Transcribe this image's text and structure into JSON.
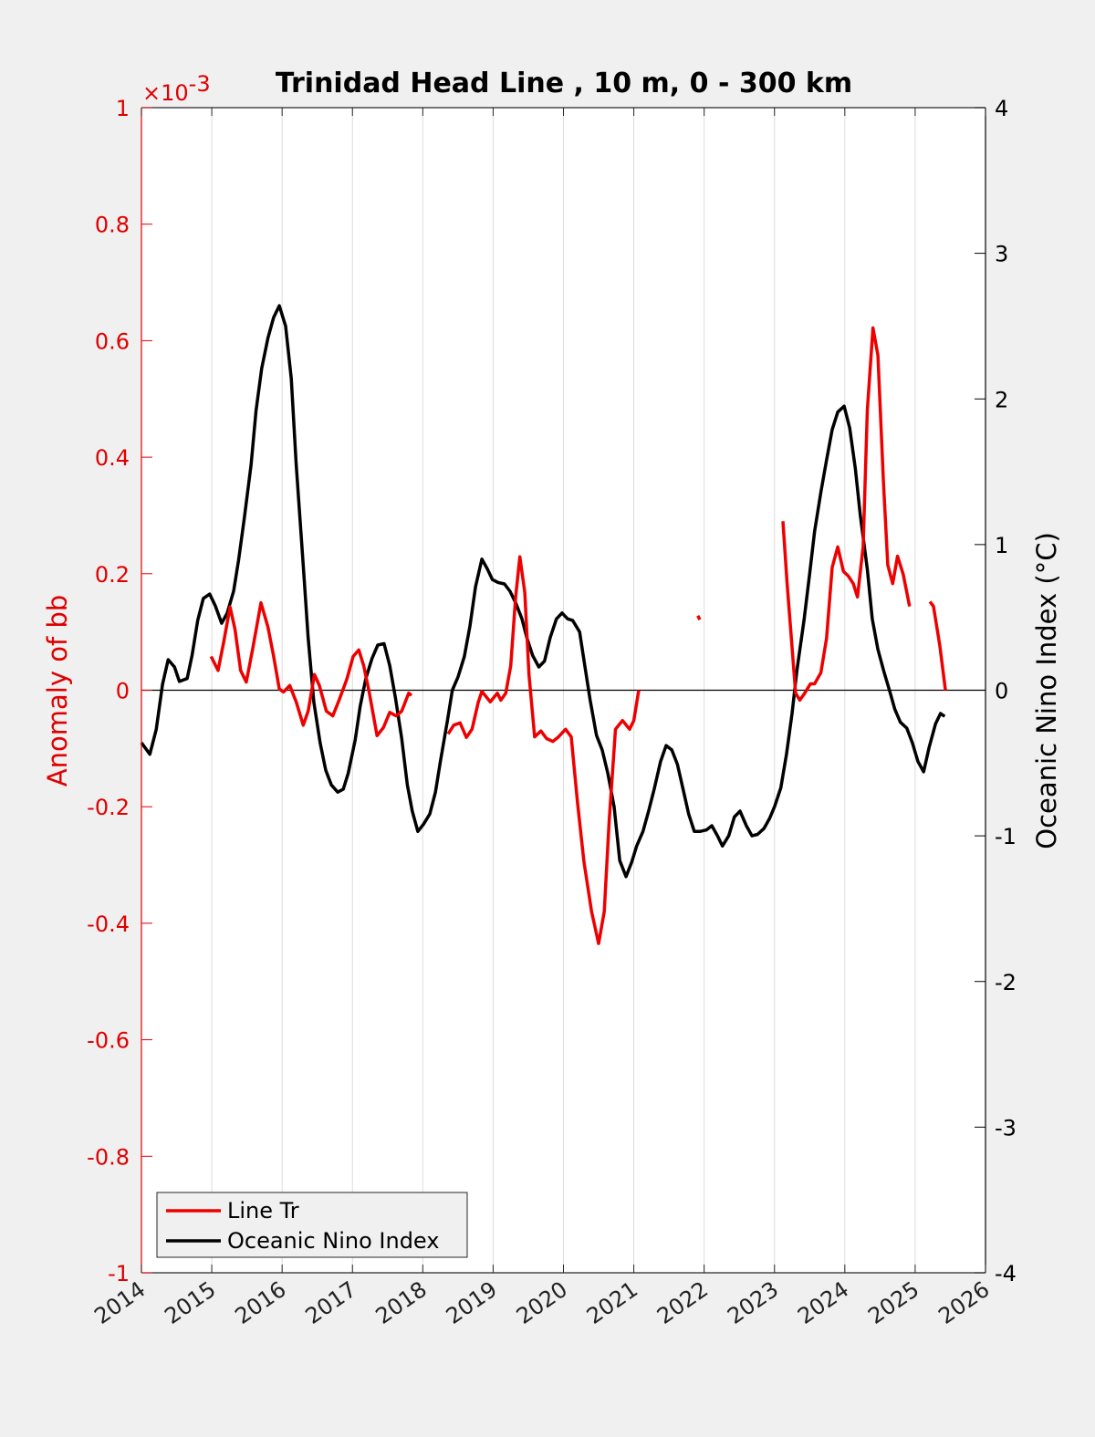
{
  "chart_data": {
    "type": "line",
    "title": "Trinidad Head Line , 10 m, 0 - 300 km",
    "xlabel": "",
    "ylabel_left": "Anomaly of bb",
    "ylabel_right": "Oceanic Nino Index (°C)",
    "left_exponent": "×10",
    "left_exponent_power": "-3",
    "xlim": [
      2014,
      2026
    ],
    "ylim_left": [
      -1,
      1
    ],
    "ylim_right": [
      -4,
      4
    ],
    "x_ticks": [
      "2014",
      "2015",
      "2016",
      "2017",
      "2018",
      "2019",
      "2020",
      "2021",
      "2022",
      "2023",
      "2024",
      "2025",
      "2026"
    ],
    "y_ticks_left": [
      "1",
      "0.8",
      "0.6",
      "0.4",
      "0.2",
      "0",
      "-0.2",
      "-0.4",
      "-0.6",
      "-0.8",
      "-1"
    ],
    "y_ticks_right": [
      "4",
      "3",
      "2",
      "1",
      "0",
      "-1",
      "-2",
      "-3",
      "-4"
    ],
    "grid": "x-only",
    "legend_position": "bottom-left",
    "colors": {
      "line_tr": "#ee0000",
      "oni": "#000000",
      "left_axis": "#e00000",
      "grid": "#dcdcdc"
    },
    "series": [
      {
        "name": "Line Tr",
        "axis": "left",
        "unit_scale": "1e-3",
        "segments": [
          [
            [
              2014.99,
              0.058
            ],
            [
              2015.09,
              0.034
            ],
            [
              2015.17,
              0.083
            ],
            [
              2015.26,
              0.143
            ],
            [
              2015.33,
              0.105
            ],
            [
              2015.41,
              0.034
            ],
            [
              2015.49,
              0.014
            ],
            [
              2015.58,
              0.07
            ],
            [
              2015.7,
              0.15
            ],
            [
              2015.8,
              0.108
            ],
            [
              2015.88,
              0.058
            ],
            [
              2015.96,
              0.002
            ],
            [
              2016.02,
              -0.003
            ],
            [
              2016.11,
              0.008
            ],
            [
              2016.2,
              -0.02
            ],
            [
              2016.3,
              -0.06
            ],
            [
              2016.37,
              -0.036
            ],
            [
              2016.46,
              0.027
            ],
            [
              2016.53,
              0.008
            ],
            [
              2016.63,
              -0.036
            ],
            [
              2016.72,
              -0.044
            ],
            [
              2016.81,
              -0.017
            ],
            [
              2016.92,
              0.019
            ],
            [
              2017.01,
              0.058
            ],
            [
              2017.09,
              0.069
            ],
            [
              2017.16,
              0.042
            ],
            [
              2017.24,
              -0.005
            ],
            [
              2017.35,
              -0.078
            ],
            [
              2017.44,
              -0.064
            ],
            [
              2017.53,
              -0.038
            ],
            [
              2017.62,
              -0.044
            ],
            [
              2017.7,
              -0.036
            ],
            [
              2017.8,
              -0.005
            ],
            [
              2017.84,
              -0.009
            ]
          ],
          [
            [
              2018.36,
              -0.075
            ],
            [
              2018.44,
              -0.06
            ],
            [
              2018.53,
              -0.056
            ],
            [
              2018.62,
              -0.081
            ],
            [
              2018.7,
              -0.067
            ],
            [
              2018.79,
              -0.02
            ],
            [
              2018.84,
              -0.002
            ],
            [
              2018.96,
              -0.02
            ],
            [
              2019.06,
              -0.005
            ],
            [
              2019.11,
              -0.017
            ],
            [
              2019.18,
              -0.005
            ],
            [
              2019.25,
              0.042
            ],
            [
              2019.32,
              0.16
            ],
            [
              2019.38,
              0.229
            ],
            [
              2019.45,
              0.168
            ],
            [
              2019.51,
              0.027
            ],
            [
              2019.59,
              -0.08
            ],
            [
              2019.68,
              -0.07
            ],
            [
              2019.76,
              -0.083
            ],
            [
              2019.85,
              -0.088
            ],
            [
              2019.93,
              -0.08
            ],
            [
              2020.03,
              -0.067
            ],
            [
              2020.11,
              -0.08
            ],
            [
              2020.2,
              -0.193
            ],
            [
              2020.29,
              -0.294
            ],
            [
              2020.4,
              -0.38
            ],
            [
              2020.5,
              -0.435
            ],
            [
              2020.58,
              -0.38
            ],
            [
              2020.65,
              -0.224
            ],
            [
              2020.74,
              -0.067
            ],
            [
              2020.84,
              -0.052
            ],
            [
              2020.94,
              -0.067
            ],
            [
              2021.0,
              -0.052
            ],
            [
              2021.07,
              0.0
            ]
          ],
          [
            [
              2021.91,
              0.128
            ],
            [
              2021.94,
              0.121
            ]
          ],
          [
            [
              2023.12,
              0.29
            ],
            [
              2023.18,
              0.183
            ],
            [
              2023.25,
              0.074
            ],
            [
              2023.3,
              -0.005
            ],
            [
              2023.36,
              -0.017
            ],
            [
              2023.43,
              -0.005
            ],
            [
              2023.51,
              0.011
            ],
            [
              2023.57,
              0.011
            ],
            [
              2023.66,
              0.03
            ],
            [
              2023.74,
              0.089
            ],
            [
              2023.82,
              0.211
            ],
            [
              2023.9,
              0.246
            ],
            [
              2023.98,
              0.204
            ],
            [
              2024.05,
              0.196
            ],
            [
              2024.12,
              0.183
            ],
            [
              2024.18,
              0.16
            ],
            [
              2024.26,
              0.246
            ],
            [
              2024.32,
              0.481
            ],
            [
              2024.4,
              0.622
            ],
            [
              2024.47,
              0.575
            ],
            [
              2024.55,
              0.356
            ],
            [
              2024.61,
              0.215
            ],
            [
              2024.68,
              0.183
            ],
            [
              2024.75,
              0.23
            ],
            [
              2024.83,
              0.199
            ],
            [
              2024.92,
              0.144
            ]
          ],
          [
            [
              2025.21,
              0.152
            ],
            [
              2025.26,
              0.144
            ],
            [
              2025.35,
              0.077
            ],
            [
              2025.43,
              0.0
            ]
          ]
        ]
      },
      {
        "name": "Oceanic Nino Index",
        "axis": "right",
        "segments": [
          [
            [
              2014.0,
              -0.36
            ],
            [
              2014.12,
              -0.44
            ],
            [
              2014.21,
              -0.27
            ],
            [
              2014.3,
              0.04
            ],
            [
              2014.38,
              0.21
            ],
            [
              2014.47,
              0.16
            ],
            [
              2014.54,
              0.06
            ],
            [
              2014.65,
              0.08
            ],
            [
              2014.72,
              0.24
            ],
            [
              2014.8,
              0.48
            ],
            [
              2014.88,
              0.63
            ],
            [
              2014.97,
              0.66
            ],
            [
              2015.05,
              0.58
            ],
            [
              2015.14,
              0.46
            ],
            [
              2015.22,
              0.53
            ],
            [
              2015.31,
              0.68
            ],
            [
              2015.38,
              0.89
            ],
            [
              2015.46,
              1.17
            ],
            [
              2015.56,
              1.55
            ],
            [
              2015.63,
              1.92
            ],
            [
              2015.71,
              2.21
            ],
            [
              2015.8,
              2.42
            ],
            [
              2015.88,
              2.56
            ],
            [
              2015.96,
              2.64
            ],
            [
              2016.05,
              2.5
            ],
            [
              2016.13,
              2.14
            ],
            [
              2016.2,
              1.55
            ],
            [
              2016.3,
              0.86
            ],
            [
              2016.37,
              0.36
            ],
            [
              2016.45,
              -0.08
            ],
            [
              2016.54,
              -0.36
            ],
            [
              2016.62,
              -0.55
            ],
            [
              2016.7,
              -0.65
            ],
            [
              2016.79,
              -0.7
            ],
            [
              2016.87,
              -0.68
            ],
            [
              2016.94,
              -0.57
            ],
            [
              2017.04,
              -0.34
            ],
            [
              2017.11,
              -0.11
            ],
            [
              2017.19,
              0.08
            ],
            [
              2017.28,
              0.22
            ],
            [
              2017.36,
              0.31
            ],
            [
              2017.45,
              0.32
            ],
            [
              2017.53,
              0.17
            ],
            [
              2017.61,
              -0.05
            ],
            [
              2017.7,
              -0.33
            ],
            [
              2017.78,
              -0.65
            ],
            [
              2017.85,
              -0.83
            ],
            [
              2017.93,
              -0.97
            ],
            [
              2018.01,
              -0.92
            ],
            [
              2018.1,
              -0.85
            ],
            [
              2018.18,
              -0.7
            ],
            [
              2018.25,
              -0.49
            ],
            [
              2018.35,
              -0.21
            ],
            [
              2018.42,
              0.0
            ],
            [
              2018.5,
              0.09
            ],
            [
              2018.59,
              0.23
            ],
            [
              2018.67,
              0.44
            ],
            [
              2018.75,
              0.71
            ],
            [
              2018.84,
              0.9
            ],
            [
              2018.92,
              0.83
            ],
            [
              2018.99,
              0.76
            ],
            [
              2019.07,
              0.74
            ],
            [
              2019.16,
              0.73
            ],
            [
              2019.24,
              0.68
            ],
            [
              2019.32,
              0.6
            ],
            [
              2019.41,
              0.49
            ],
            [
              2019.48,
              0.36
            ],
            [
              2019.56,
              0.24
            ],
            [
              2019.65,
              0.16
            ],
            [
              2019.73,
              0.2
            ],
            [
              2019.81,
              0.36
            ],
            [
              2019.9,
              0.49
            ],
            [
              2019.98,
              0.53
            ],
            [
              2020.06,
              0.49
            ],
            [
              2020.13,
              0.48
            ],
            [
              2020.23,
              0.4
            ],
            [
              2020.3,
              0.18
            ],
            [
              2020.38,
              -0.07
            ],
            [
              2020.47,
              -0.31
            ],
            [
              2020.55,
              -0.41
            ],
            [
              2020.63,
              -0.57
            ],
            [
              2020.72,
              -0.8
            ],
            [
              2020.8,
              -1.17
            ],
            [
              2020.89,
              -1.28
            ],
            [
              2020.97,
              -1.18
            ],
            [
              2021.04,
              -1.07
            ],
            [
              2021.13,
              -0.97
            ],
            [
              2021.21,
              -0.83
            ],
            [
              2021.29,
              -0.68
            ],
            [
              2021.38,
              -0.49
            ],
            [
              2021.46,
              -0.38
            ],
            [
              2021.54,
              -0.41
            ],
            [
              2021.62,
              -0.51
            ],
            [
              2021.71,
              -0.7
            ],
            [
              2021.78,
              -0.85
            ],
            [
              2021.86,
              -0.97
            ],
            [
              2021.94,
              -0.97
            ],
            [
              2022.03,
              -0.96
            ],
            [
              2022.11,
              -0.93
            ],
            [
              2022.19,
              -1.0
            ],
            [
              2022.26,
              -1.07
            ],
            [
              2022.35,
              -1.0
            ],
            [
              2022.43,
              -0.87
            ],
            [
              2022.51,
              -0.83
            ],
            [
              2022.6,
              -0.93
            ],
            [
              2022.68,
              -1.0
            ],
            [
              2022.76,
              -0.99
            ],
            [
              2022.85,
              -0.95
            ],
            [
              2022.93,
              -0.88
            ],
            [
              2023.0,
              -0.8
            ],
            [
              2023.09,
              -0.67
            ],
            [
              2023.17,
              -0.44
            ],
            [
              2023.25,
              -0.16
            ],
            [
              2023.32,
              0.14
            ],
            [
              2023.42,
              0.48
            ],
            [
              2023.5,
              0.8
            ],
            [
              2023.57,
              1.09
            ],
            [
              2023.66,
              1.36
            ],
            [
              2023.74,
              1.58
            ],
            [
              2023.82,
              1.79
            ],
            [
              2023.9,
              1.91
            ],
            [
              2023.99,
              1.95
            ],
            [
              2024.07,
              1.8
            ],
            [
              2024.15,
              1.52
            ],
            [
              2024.22,
              1.2
            ],
            [
              2024.32,
              0.83
            ],
            [
              2024.39,
              0.49
            ],
            [
              2024.47,
              0.28
            ],
            [
              2024.56,
              0.12
            ],
            [
              2024.64,
              -0.01
            ],
            [
              2024.71,
              -0.13
            ],
            [
              2024.79,
              -0.22
            ],
            [
              2024.88,
              -0.26
            ],
            [
              2024.96,
              -0.36
            ],
            [
              2025.04,
              -0.49
            ],
            [
              2025.12,
              -0.56
            ],
            [
              2025.2,
              -0.39
            ],
            [
              2025.29,
              -0.23
            ],
            [
              2025.36,
              -0.16
            ],
            [
              2025.42,
              -0.18
            ]
          ]
        ]
      }
    ]
  },
  "legend": {
    "items": [
      "Line Tr",
      "Oceanic Nino Index"
    ]
  }
}
